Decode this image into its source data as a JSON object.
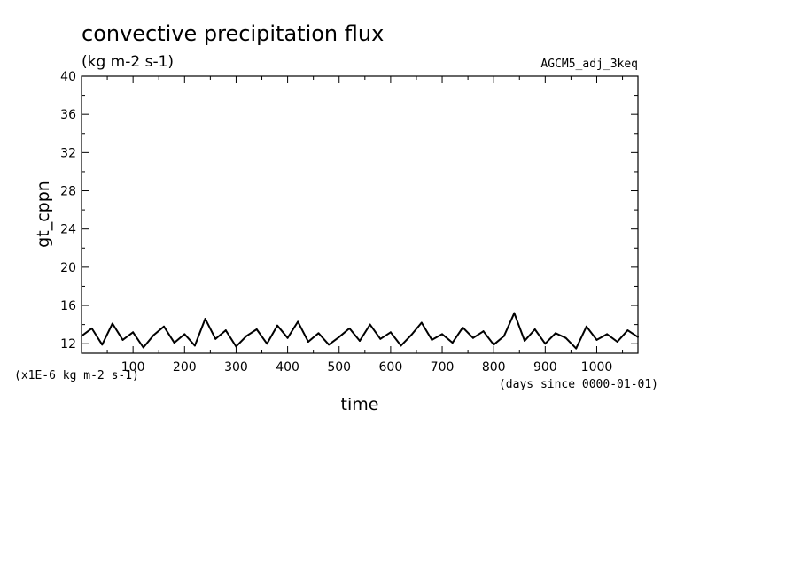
{
  "chart_data": {
    "type": "line",
    "title": "convective precipitation flux",
    "units": "(kg m-2 s-1)",
    "dataset": "AGCM5_adj_3keq",
    "ylabel": "gt_cppn",
    "xlabel": "time",
    "yscale_note": "(x1E-6 kg m-2 s-1)",
    "xunits_note": "(days since 0000-01-01)",
    "xlim": [
      0,
      1080
    ],
    "ylim": [
      11,
      40
    ],
    "yticks": [
      12,
      16,
      20,
      24,
      28,
      32,
      36,
      40
    ],
    "xticks": [
      100,
      200,
      300,
      400,
      500,
      600,
      700,
      800,
      900,
      1000
    ],
    "grid": false,
    "series": [
      {
        "color": "#000000",
        "x": [
          0,
          20,
          40,
          60,
          80,
          100,
          120,
          140,
          160,
          180,
          200,
          220,
          240,
          260,
          280,
          300,
          320,
          340,
          360,
          380,
          400,
          420,
          440,
          460,
          480,
          500,
          520,
          540,
          560,
          580,
          600,
          620,
          640,
          660,
          680,
          700,
          720,
          740,
          760,
          780,
          800,
          820,
          840,
          860,
          880,
          900,
          920,
          940,
          960,
          980,
          1000,
          1020,
          1040,
          1060,
          1080
        ],
        "values": [
          12.8,
          13.6,
          11.9,
          14.1,
          12.4,
          13.2,
          11.6,
          12.9,
          13.8,
          12.1,
          13.0,
          11.8,
          14.6,
          12.5,
          13.4,
          11.7,
          12.8,
          13.5,
          12.0,
          13.9,
          12.6,
          14.3,
          12.2,
          13.1,
          11.9,
          12.7,
          13.6,
          12.3,
          14.0,
          12.5,
          13.2,
          11.8,
          12.9,
          14.2,
          12.4,
          13.0,
          12.1,
          13.7,
          12.6,
          13.3,
          11.9,
          12.8,
          15.2,
          12.3,
          13.5,
          12.0,
          13.1,
          12.6,
          11.5,
          13.8,
          12.4,
          13.0,
          12.2,
          13.4,
          12.7
        ]
      }
    ]
  }
}
